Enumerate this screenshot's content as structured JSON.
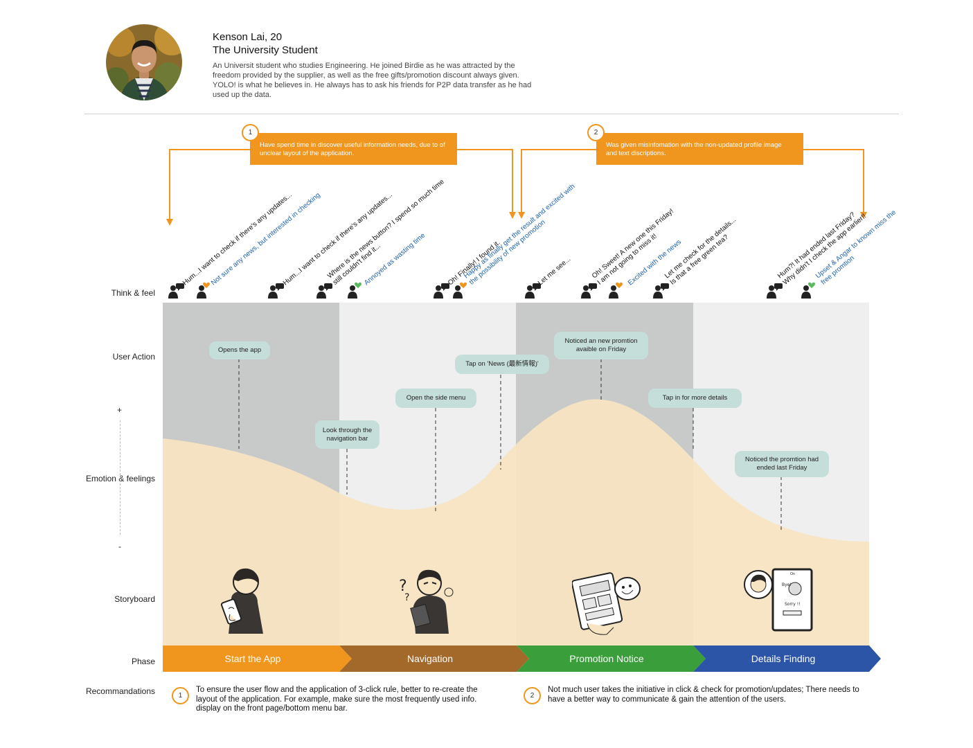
{
  "persona": {
    "name": "Kenson Lai, 20",
    "role": "The University Student",
    "description": "An Universit student who studies Engineering. He joined Birdie as he was attracted by the freedom provided by the supplier, as well as the free gifts/promotion discount always given. YOLO! is what he believes in. He always has to ask his friends for P2P data transfer as he had used up the data."
  },
  "pain_points": [
    {
      "number": "1",
      "text": "Have spend time in discover useful information needs, due to of unclear layout of the application."
    },
    {
      "number": "2",
      "text": "Was given misinfomation with the non-updated profile image and text discriptions."
    }
  ],
  "row_labels": {
    "think_feel": "Think & feel",
    "user_action": "User Action",
    "plus": "+",
    "emotion": "Emotion & feelings",
    "minus": "-",
    "storyboard": "Storyboard",
    "phase": "Phase",
    "recommendations": "Recommandations"
  },
  "thoughts": [
    {
      "lines": [
        "Hum...I want to check if there's any updates..."
      ],
      "color": "black"
    },
    {
      "lines": [
        "Not sure any news, but interested in checking"
      ],
      "color": "blue",
      "heart": "#f0961e"
    },
    {
      "lines": [
        "Hum...I want to check if there's any updates..."
      ],
      "color": "black"
    },
    {
      "lines": [
        "Where is the news button? I spend so much time",
        "still couldn't find it..."
      ],
      "color": "black"
    },
    {
      "lines": [
        "Annoyed as wasting time"
      ],
      "color": "blue",
      "heart": "#5cb85c"
    },
    {
      "lines": [
        "Oh! Finally! I found it."
      ],
      "color": "black"
    },
    {
      "lines": [
        "Happy as finally get the result and excited with",
        "the possibility of new promotion"
      ],
      "color": "blue",
      "heart": "#f0961e"
    },
    {
      "lines": [
        "Let me see..."
      ],
      "color": "black"
    },
    {
      "lines": [
        "Oh! Sweet! A new one this Friday!",
        "I am not going to miss it!"
      ],
      "color": "black"
    },
    {
      "lines": [
        "Excited with the news"
      ],
      "color": "blue",
      "heart": "#f0961e"
    },
    {
      "lines": [
        "Let me check for the details...",
        "Is that a free green tea?"
      ],
      "color": "black"
    },
    {
      "lines": [
        "Hum?! It had ended last Friday?",
        "Why didn't I check the app earlier!!"
      ],
      "color": "black"
    },
    {
      "lines": [
        "Upset & Angar to known miss the",
        "free promtion"
      ],
      "color": "blue",
      "heart": "#5cb85c"
    }
  ],
  "actions": [
    {
      "label": "Opens the app"
    },
    {
      "label": "Look through the navigation bar"
    },
    {
      "label": "Open the side menu"
    },
    {
      "label": "Tap on 'News (最新情報)'"
    },
    {
      "label": "Noticed an new promtion avaible on Friday"
    },
    {
      "label": "Tap in for more details"
    },
    {
      "label": "Noticed the promtion had ended last Friday"
    }
  ],
  "emotion_curve": {
    "levels": [
      0.55,
      0.4,
      0.35,
      0.52,
      0.95,
      0.6,
      0.32,
      0.27
    ]
  },
  "phases": [
    {
      "label": "Start the App",
      "color": "#f0961e"
    },
    {
      "label": "Navigation",
      "color": "#a3692a"
    },
    {
      "label": "Promotion Notice",
      "color": "#3a9e3a"
    },
    {
      "label": "Details Finding",
      "color": "#2c55a8"
    }
  ],
  "recommendations": [
    {
      "number": "1",
      "text": "To ensure the user flow and the application of 3-click rule, better to re-create the layout of the application. For example, make sure the most frequently used info. display on the front page/bottom menu bar."
    },
    {
      "number": "2",
      "text": "Not much user takes the initiative in click & check for promotion/updates; There needs to have a better way to communicate & gain the attention of the users."
    }
  ],
  "colors": {
    "accent": "#f0961e",
    "column_dark": "#c8c9c9",
    "column_light": "#efefef",
    "emotion_fill": "#f7e4c3",
    "bubble": "#c6ded9",
    "blue_text": "#1f64ad"
  }
}
